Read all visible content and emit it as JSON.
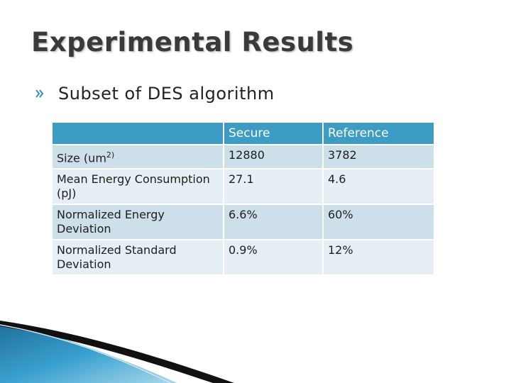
{
  "slide": {
    "title": "Experimental Results",
    "bullet": {
      "icon": "bullet-arrow-icon",
      "text": "Subset of DES algorithm"
    }
  },
  "table": {
    "headers": [
      "",
      "Secure",
      "Reference"
    ],
    "rows": [
      {
        "label": "Size (um",
        "label_sup": "2)",
        "secure": "12880",
        "reference": "3782"
      },
      {
        "label": "Mean Energy Consumption (pJ)",
        "secure": "27.1",
        "reference": "4.6"
      },
      {
        "label": "Normalized Energy Deviation",
        "secure": "6.6%",
        "reference": "60%"
      },
      {
        "label": "Normalized Standard Deviation",
        "secure": "0.9%",
        "reference": "12%"
      }
    ]
  },
  "colors": {
    "header": "#3c9cc4",
    "row_dark": "#cddfe8",
    "row_light": "#e6eff4",
    "title": "#3a3a3a",
    "swoosh_blue": "#2f8fbf",
    "swoosh_black": "#111111"
  }
}
